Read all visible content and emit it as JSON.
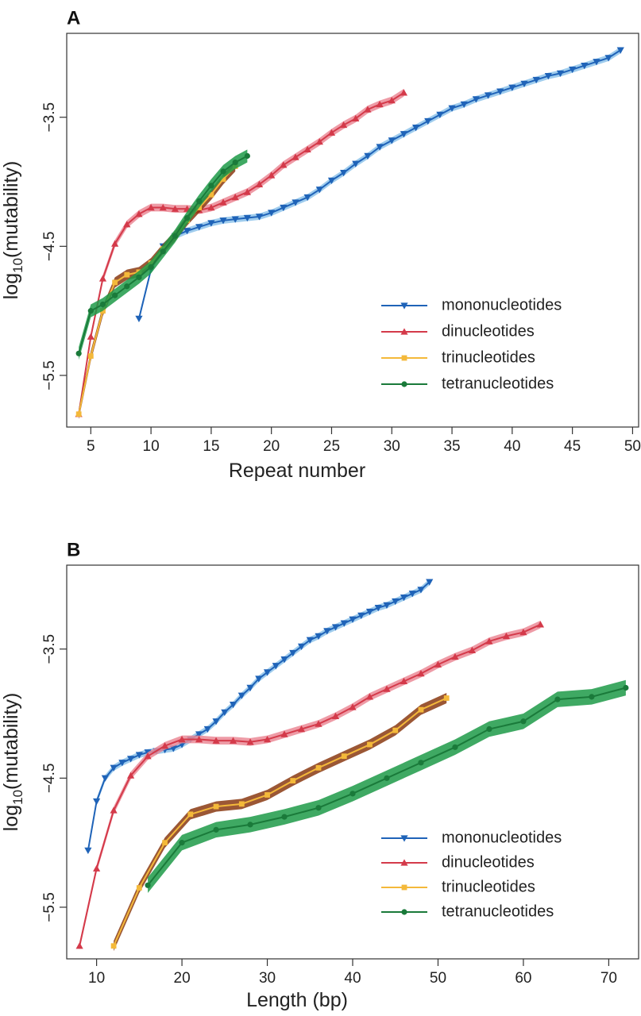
{
  "colors": {
    "mononucleotides": "#1f63b8",
    "dinucleotides": "#d43a4a",
    "trinucleotides": "#f4b93a",
    "tetranucleotides": "#1a7a3a",
    "bands": {
      "mononucleotides": "#8ec3ea",
      "dinucleotides": "#eb8a96",
      "trinucleotides": "#8a3a12",
      "tetranucleotides": "#1d9a48"
    }
  },
  "chart_data": [
    {
      "type": "line",
      "panel_label": "A",
      "xlabel": "Repeat number",
      "ylabel_base": "log",
      "ylabel_sub": "10",
      "ylabel_rest": "(mutability)",
      "xlim": [
        3,
        50.5
      ],
      "ylim": [
        -5.9,
        -2.85
      ],
      "xticks": [
        5,
        10,
        15,
        20,
        25,
        30,
        35,
        40,
        45,
        50
      ],
      "yticks": [
        -3.5,
        -4.5,
        -5.5
      ],
      "ytick_labels": [
        "−3.5",
        "−4.5",
        "−5.5"
      ],
      "legend_position": "bottom-right",
      "series": [
        {
          "name": "mononucleotides",
          "key": "mononucleotides",
          "marker": "triangle-down",
          "band": 0.025,
          "x": [
            9,
            10,
            11,
            12,
            13,
            14,
            15,
            16,
            17,
            18,
            19,
            20,
            21,
            22,
            23,
            24,
            25,
            26,
            27,
            28,
            29,
            30,
            31,
            32,
            33,
            34,
            35,
            36,
            37,
            38,
            39,
            40,
            41,
            42,
            43,
            44,
            45,
            46,
            47,
            48,
            49
          ],
          "y": [
            -5.06,
            -4.68,
            -4.5,
            -4.42,
            -4.38,
            -4.35,
            -4.32,
            -4.3,
            -4.29,
            -4.28,
            -4.27,
            -4.24,
            -4.2,
            -4.16,
            -4.12,
            -4.06,
            -3.99,
            -3.93,
            -3.86,
            -3.8,
            -3.73,
            -3.68,
            -3.63,
            -3.58,
            -3.53,
            -3.48,
            -3.43,
            -3.4,
            -3.36,
            -3.33,
            -3.3,
            -3.27,
            -3.24,
            -3.21,
            -3.18,
            -3.16,
            -3.13,
            -3.1,
            -3.07,
            -3.04,
            -2.98
          ]
        },
        {
          "name": "dinucleotides",
          "key": "dinucleotides",
          "marker": "triangle-up",
          "band": 0.03,
          "x": [
            4,
            5,
            6,
            7,
            8,
            9,
            10,
            11,
            12,
            13,
            14,
            15,
            16,
            17,
            18,
            19,
            20,
            21,
            22,
            23,
            24,
            25,
            26,
            27,
            28,
            29,
            30,
            31
          ],
          "y": [
            -5.8,
            -5.2,
            -4.75,
            -4.48,
            -4.33,
            -4.25,
            -4.2,
            -4.2,
            -4.21,
            -4.21,
            -4.22,
            -4.2,
            -4.16,
            -4.12,
            -4.08,
            -4.02,
            -3.95,
            -3.87,
            -3.81,
            -3.75,
            -3.69,
            -3.62,
            -3.56,
            -3.51,
            -3.44,
            -3.4,
            -3.37,
            -3.31
          ]
        },
        {
          "name": "trinucleotides",
          "key": "trinucleotides",
          "marker": "square",
          "band": 0.04,
          "x": [
            4,
            5,
            6,
            7,
            8,
            9,
            10,
            11,
            12,
            13,
            14,
            15,
            16,
            17
          ],
          "y": [
            -5.8,
            -5.35,
            -5.0,
            -4.78,
            -4.72,
            -4.7,
            -4.63,
            -4.52,
            -4.42,
            -4.3,
            -4.2,
            -4.1,
            -3.98,
            -3.88
          ]
        },
        {
          "name": "tetranucleotides",
          "key": "tetranucleotides",
          "marker": "circle",
          "band": 0.05,
          "x": [
            4,
            5,
            6,
            7,
            8,
            9,
            10,
            11,
            12,
            13,
            14,
            15,
            16,
            17,
            18
          ],
          "y": [
            -5.33,
            -5.0,
            -4.95,
            -4.88,
            -4.81,
            -4.74,
            -4.66,
            -4.54,
            -4.42,
            -4.28,
            -4.15,
            -4.03,
            -3.92,
            -3.85,
            -3.8
          ]
        }
      ]
    },
    {
      "type": "line",
      "panel_label": "B",
      "xlabel": "Length (bp)",
      "ylabel_base": "log",
      "ylabel_sub": "10",
      "ylabel_rest": "(mutability)",
      "xlim": [
        6.5,
        73.5
      ],
      "ylim": [
        -5.9,
        -2.85
      ],
      "xticks": [
        10,
        20,
        30,
        40,
        50,
        60,
        70
      ],
      "yticks": [
        -3.5,
        -4.5,
        -5.5
      ],
      "ytick_labels": [
        "−3.5",
        "−4.5",
        "−5.5"
      ],
      "legend_position": "bottom-right",
      "series": [
        {
          "name": "mononucleotides",
          "key": "mononucleotides",
          "marker": "triangle-down",
          "band": 0.025,
          "x": [
            9,
            10,
            11,
            12,
            13,
            14,
            15,
            16,
            17,
            18,
            19,
            20,
            21,
            22,
            23,
            24,
            25,
            26,
            27,
            28,
            29,
            30,
            31,
            32,
            33,
            34,
            35,
            36,
            37,
            38,
            39,
            40,
            41,
            42,
            43,
            44,
            45,
            46,
            47,
            48,
            49
          ],
          "y": [
            -5.06,
            -4.68,
            -4.5,
            -4.42,
            -4.38,
            -4.35,
            -4.32,
            -4.3,
            -4.29,
            -4.28,
            -4.27,
            -4.24,
            -4.2,
            -4.16,
            -4.12,
            -4.06,
            -3.99,
            -3.93,
            -3.86,
            -3.8,
            -3.73,
            -3.68,
            -3.63,
            -3.58,
            -3.53,
            -3.48,
            -3.43,
            -3.4,
            -3.36,
            -3.33,
            -3.3,
            -3.27,
            -3.24,
            -3.21,
            -3.18,
            -3.16,
            -3.13,
            -3.1,
            -3.07,
            -3.04,
            -2.98
          ]
        },
        {
          "name": "dinucleotides",
          "key": "dinucleotides",
          "marker": "triangle-up",
          "band": 0.03,
          "x": [
            8,
            10,
            12,
            14,
            16,
            18,
            20,
            22,
            24,
            26,
            28,
            30,
            32,
            34,
            36,
            38,
            40,
            42,
            44,
            46,
            48,
            50,
            52,
            54,
            56,
            58,
            60,
            62
          ],
          "y": [
            -5.8,
            -5.2,
            -4.75,
            -4.48,
            -4.33,
            -4.25,
            -4.2,
            -4.2,
            -4.21,
            -4.21,
            -4.22,
            -4.2,
            -4.16,
            -4.12,
            -4.08,
            -4.02,
            -3.95,
            -3.87,
            -3.81,
            -3.75,
            -3.69,
            -3.62,
            -3.56,
            -3.51,
            -3.44,
            -3.4,
            -3.37,
            -3.31
          ]
        },
        {
          "name": "trinucleotides",
          "key": "trinucleotides",
          "marker": "square",
          "band": 0.04,
          "x": [
            12,
            15,
            18,
            21,
            24,
            27,
            30,
            33,
            36,
            39,
            42,
            45,
            48,
            51
          ],
          "y": [
            -5.8,
            -5.35,
            -5.0,
            -4.78,
            -4.72,
            -4.7,
            -4.63,
            -4.52,
            -4.42,
            -4.33,
            -4.24,
            -4.13,
            -3.97,
            -3.88
          ]
        },
        {
          "name": "tetranucleotides",
          "key": "tetranucleotides",
          "marker": "circle",
          "band": 0.06,
          "x": [
            16,
            20,
            24,
            28,
            32,
            36,
            40,
            44,
            48,
            52,
            56,
            60,
            64,
            68,
            72
          ],
          "y": [
            -5.33,
            -5.0,
            -4.9,
            -4.86,
            -4.8,
            -4.73,
            -4.62,
            -4.5,
            -4.38,
            -4.26,
            -4.12,
            -4.06,
            -3.89,
            -3.87,
            -3.8
          ]
        }
      ]
    }
  ]
}
